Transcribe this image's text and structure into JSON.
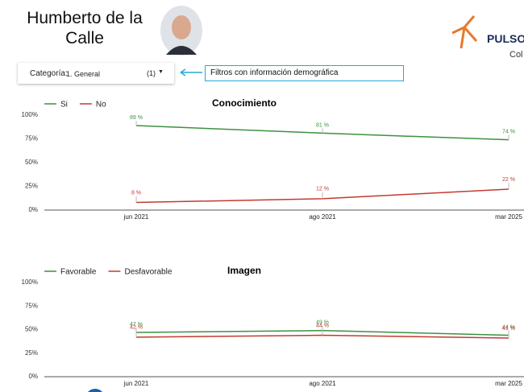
{
  "header": {
    "title": "Humberto de la Calle",
    "logo": "PULSO",
    "logo_sub": "Col"
  },
  "filter": {
    "label": "Categoría:",
    "value": "1. General",
    "count": "(1)",
    "note": "Filtros con información demográfica"
  },
  "chart_data": [
    {
      "type": "line",
      "title": "Conocimiento",
      "categories": [
        "jun 2021",
        "ago 2021",
        "mar 2025"
      ],
      "series": [
        {
          "name": "Si",
          "color": "#3d9140",
          "values": [
            89,
            81,
            74
          ],
          "value_labels": [
            "89 %",
            "81 %",
            "74 %"
          ]
        },
        {
          "name": "No",
          "color": "#c23b32",
          "values": [
            8,
            12,
            22
          ],
          "value_labels": [
            "8 %",
            "12 %",
            "22 %"
          ]
        }
      ],
      "ylim": [
        0,
        100
      ],
      "yticks": [
        {
          "value": 0,
          "label": "0%"
        },
        {
          "value": 25,
          "label": "25%"
        },
        {
          "value": 50,
          "label": "50%"
        },
        {
          "value": 75,
          "label": "75%"
        },
        {
          "value": 100,
          "label": "100%"
        }
      ]
    },
    {
      "type": "line",
      "title": "Imagen",
      "categories": [
        "jun 2021",
        "ago 2021",
        "mar 2025"
      ],
      "series": [
        {
          "name": "Favorable",
          "color": "#3d9140",
          "values": [
            47,
            49,
            44
          ],
          "value_labels": [
            "47 %",
            "49 %",
            "44 %"
          ]
        },
        {
          "name": "Desfavorable",
          "color": "#c23b32",
          "values": [
            42,
            44,
            41
          ],
          "value_labels": [
            "42 %",
            "44 %",
            "41 %"
          ]
        }
      ],
      "ylim": [
        0,
        100
      ],
      "yticks": [
        {
          "value": 0,
          "label": "0%"
        },
        {
          "value": 25,
          "label": "25%"
        },
        {
          "value": 50,
          "label": "50%"
        },
        {
          "value": 75,
          "label": "75%"
        },
        {
          "value": 100,
          "label": "100%"
        }
      ]
    }
  ]
}
